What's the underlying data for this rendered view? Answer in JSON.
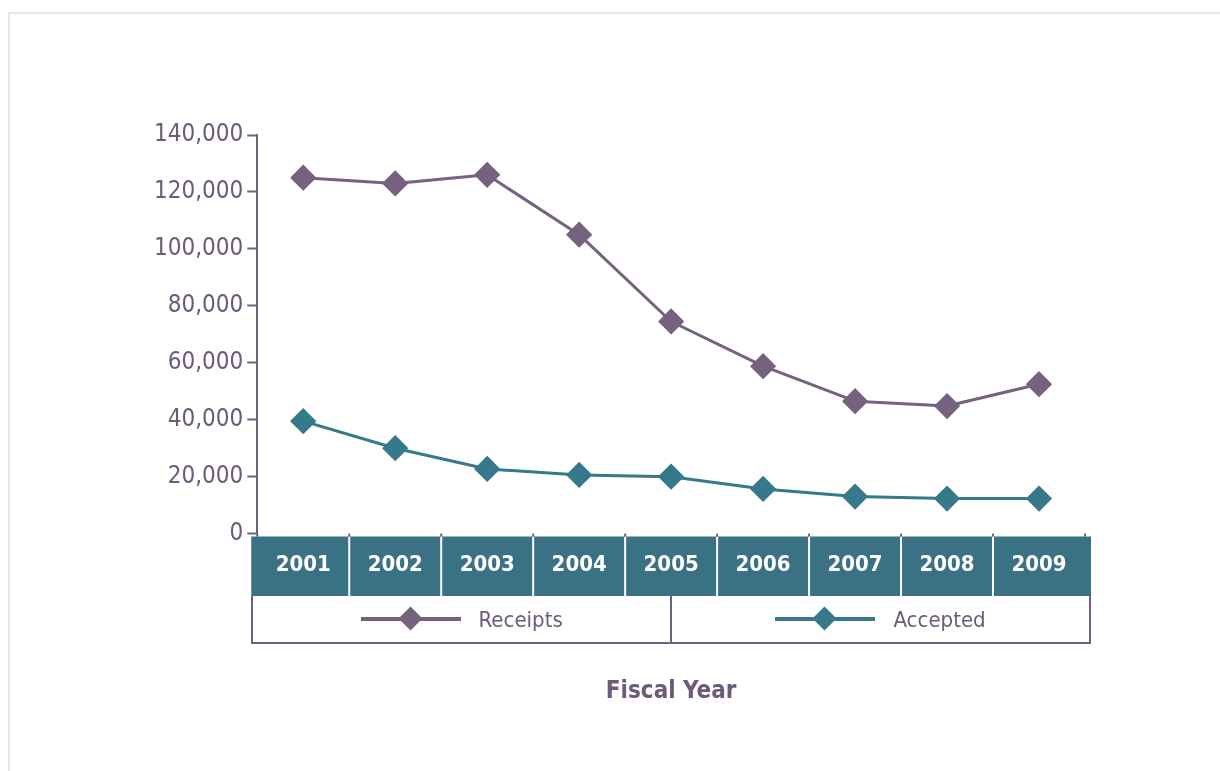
{
  "chart_data": {
    "type": "line",
    "xlabel": "Fiscal Year",
    "categories": [
      "2001",
      "2002",
      "2003",
      "2004",
      "2005",
      "2006",
      "2007",
      "2008",
      "2009"
    ],
    "series": [
      {
        "name": "Receipts",
        "color": "#76617f",
        "values": [
          125000,
          123000,
          126000,
          105000,
          74500,
          58800,
          46500,
          44800,
          52500
        ]
      },
      {
        "name": "Accepted",
        "color": "#36798a",
        "values": [
          39500,
          30000,
          22700,
          20600,
          20000,
          15700,
          13000,
          12300,
          12300
        ]
      }
    ],
    "ylim": [
      0,
      140000
    ],
    "yticks": [
      {
        "value": 0,
        "label": "0"
      },
      {
        "value": 20000,
        "label": "20,000"
      },
      {
        "value": 40000,
        "label": "40,000"
      },
      {
        "value": 60000,
        "label": "60,000"
      },
      {
        "value": 80000,
        "label": "80,000"
      },
      {
        "value": 100000,
        "label": "100,000"
      },
      {
        "value": 120000,
        "label": "120,000"
      },
      {
        "value": 140000,
        "label": "140,000"
      }
    ],
    "grid": false,
    "legend": "bottom",
    "marker": "diamond",
    "line_style": "solid"
  }
}
